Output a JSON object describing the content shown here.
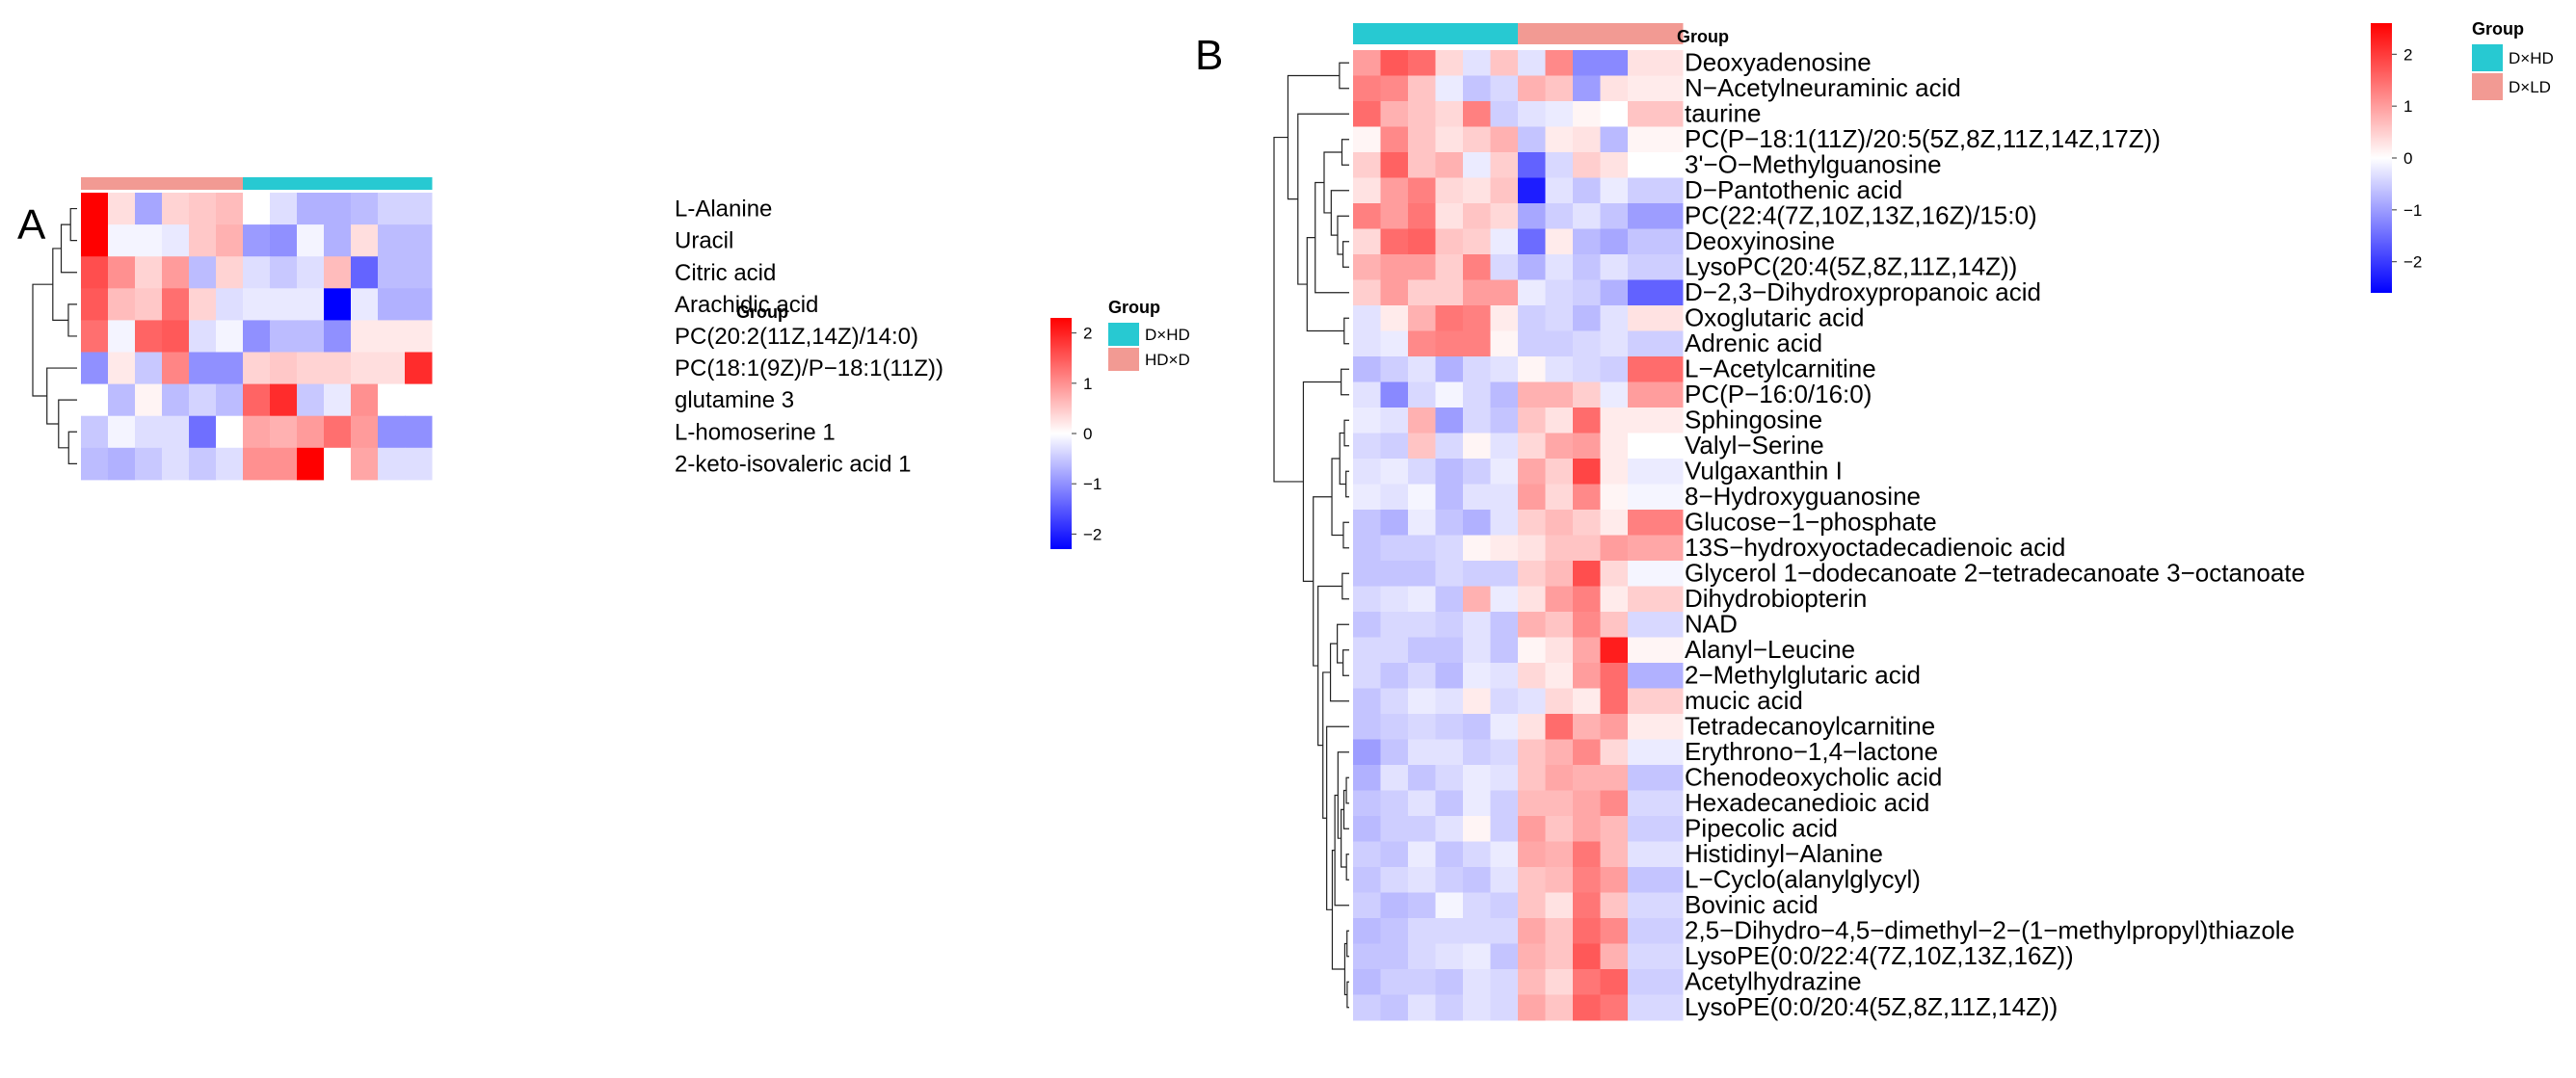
{
  "chart_data": [
    {
      "type": "heatmap",
      "panel_label": "A",
      "group_annotation_title": "Group",
      "groups": [
        "HD×D",
        "HD×D",
        "HD×D",
        "HD×D",
        "HD×D",
        "HD×D",
        "D×HD",
        "D×HD",
        "D×HD",
        "D×HD",
        "D×HD",
        "D×HD",
        "D×HD"
      ],
      "rows": [
        "L-Alanine",
        "Uracil",
        "Citric acid",
        "Arachidic acid",
        "PC(20:2(11Z,14Z)/14:0)",
        "PC(18:1(9Z)/P−18:1(11Z))",
        "glutamine 3",
        "L-homoserine 1",
        "2-keto-isovaleric acid 1"
      ],
      "values": [
        [
          2.3,
          0.3,
          -0.8,
          0.4,
          0.5,
          0.6,
          0.0,
          -0.3,
          -0.7,
          -0.7,
          -0.6,
          -0.4,
          -0.4
        ],
        [
          2.3,
          -0.1,
          -0.1,
          -0.2,
          0.5,
          0.7,
          -0.9,
          -1.0,
          -0.1,
          -0.7,
          0.3,
          -0.6,
          -0.6
        ],
        [
          1.6,
          1.0,
          0.4,
          0.9,
          -0.6,
          0.4,
          -0.3,
          -0.5,
          -0.3,
          0.6,
          -1.4,
          -0.6,
          -0.6
        ],
        [
          1.5,
          0.6,
          0.5,
          1.3,
          0.4,
          -0.3,
          -0.2,
          -0.2,
          -0.2,
          -2.3,
          -0.2,
          -0.7,
          -0.7
        ],
        [
          1.3,
          -0.1,
          1.4,
          1.5,
          -0.3,
          -0.1,
          -1.0,
          -0.6,
          -0.6,
          -1.0,
          0.2,
          0.2,
          0.2
        ],
        [
          -1.0,
          0.2,
          -0.5,
          1.1,
          -1.0,
          -1.0,
          0.4,
          0.5,
          0.4,
          0.4,
          0.3,
          0.3,
          1.9
        ],
        [
          0.0,
          -0.6,
          0.1,
          -0.6,
          -0.4,
          -0.6,
          1.4,
          1.9,
          -0.5,
          -0.2,
          1.0,
          0.0,
          0.0
        ],
        [
          -0.5,
          -0.1,
          -0.3,
          -0.3,
          -1.3,
          0.0,
          0.8,
          0.7,
          0.9,
          1.3,
          0.9,
          -1.0,
          -1.0
        ],
        [
          -0.6,
          -0.7,
          -0.5,
          -0.3,
          -0.5,
          -0.3,
          1.0,
          1.0,
          2.3,
          0.0,
          0.8,
          -0.3,
          -0.3
        ]
      ],
      "colorbar": {
        "min": -2.3,
        "max": 2.3,
        "ticks": [
          2,
          1,
          0,
          -1,
          -2
        ],
        "tick_labels": [
          "2",
          "1",
          "0",
          "−1",
          "−2"
        ]
      },
      "legend": {
        "title": "Group",
        "entries": [
          {
            "label": "D×HD",
            "color": "#27c9d2"
          },
          {
            "label": "HD×D",
            "color": "#f29a93"
          }
        ]
      }
    },
    {
      "type": "heatmap",
      "panel_label": "B",
      "group_annotation_title": "Group",
      "groups": [
        "D×HD",
        "D×HD",
        "D×HD",
        "D×HD",
        "D×HD",
        "D×HD",
        "D×LD",
        "D×LD",
        "D×LD",
        "D×LD",
        "D×LD",
        "D×LD"
      ],
      "rows": [
        "Deoxyadenosine",
        "N−Acetylneuraminic acid",
        "taurine",
        "PC(P−18:1(11Z)/20:5(5Z,8Z,11Z,14Z,17Z))",
        "3'−O−Methylguanosine",
        "D−Pantothenic acid",
        "PC(22:4(7Z,10Z,13Z,16Z)/15:0)",
        "Deoxyinosine",
        "LysoPC(20:4(5Z,8Z,11Z,14Z))",
        "D−2,3−Dihydroxypropanoic acid",
        "Oxoglutaric acid",
        "Adrenic acid",
        "L−Acetylcarnitine",
        "PC(P−16:0/16:0)",
        "Sphingosine",
        "Valyl−Serine",
        "Vulgaxanthin I",
        "8−Hydroxyguanosine",
        "Glucose−1−phosphate",
        "13S−hydroxyoctadecadienoic acid",
        "Glycerol 1−dodecanoate 2−tetradecanoate 3−octanoate",
        "Dihydrobiopterin",
        "NAD",
        "Alanyl−Leucine",
        "2−Methylglutaric acid",
        "mucic acid",
        "Tetradecanoylcarnitine",
        "Erythrono−1,4−lactone",
        "Chenodeoxycholic acid",
        "Hexadecanedioic acid",
        "Pipecolic acid",
        "Histidinyl−Alanine",
        "L−Cyclo(alanylglycyl)",
        "Bovinic acid",
        "2,5−Dihydro−4,5−dimethyl−2−(1−methylpropyl)thiazole",
        "LysoPE(0:0/22:4(7Z,10Z,13Z,16Z))",
        "Acetylhydrazine",
        "LysoPE(0:0/20:4(5Z,8Z,11Z,14Z))"
      ],
      "values": [
        [
          1.0,
          1.7,
          1.5,
          0.4,
          -0.3,
          0.6,
          -0.3,
          1.2,
          -1.2,
          -1.2,
          0.3,
          0.3
        ],
        [
          1.3,
          1.2,
          0.6,
          -0.2,
          -0.6,
          -0.4,
          0.8,
          0.6,
          -1.0,
          0.3,
          0.2,
          0.2
        ],
        [
          1.5,
          0.8,
          0.6,
          0.4,
          1.3,
          -0.5,
          -0.3,
          -0.2,
          0.1,
          0.0,
          0.6,
          0.6
        ],
        [
          0.1,
          1.2,
          0.6,
          0.3,
          0.5,
          0.8,
          -0.6,
          0.2,
          0.3,
          -0.7,
          0.1,
          0.1
        ],
        [
          0.5,
          1.6,
          0.6,
          0.8,
          -0.2,
          0.5,
          -1.6,
          -0.4,
          0.5,
          0.3,
          0.0,
          0.0
        ],
        [
          0.3,
          1.0,
          1.3,
          0.4,
          0.3,
          0.6,
          -2.3,
          -0.3,
          -0.6,
          -0.2,
          -0.5,
          -0.5
        ],
        [
          1.3,
          1.0,
          1.4,
          0.3,
          0.6,
          0.4,
          -0.9,
          -0.5,
          -0.3,
          -0.6,
          -1.0,
          -1.0
        ],
        [
          0.4,
          1.5,
          1.6,
          0.6,
          0.5,
          -0.2,
          -1.5,
          0.2,
          -0.7,
          -0.9,
          -0.6,
          -0.6
        ],
        [
          0.8,
          1.0,
          1.0,
          0.5,
          1.3,
          -0.4,
          -0.8,
          -0.3,
          -0.6,
          -0.3,
          -0.5,
          -0.5
        ],
        [
          0.5,
          1.0,
          0.5,
          0.5,
          1.0,
          1.0,
          -0.2,
          -0.4,
          -0.5,
          -0.8,
          -1.6,
          -1.6
        ],
        [
          -0.3,
          0.2,
          0.8,
          1.4,
          1.3,
          0.2,
          -0.5,
          -0.4,
          -0.7,
          -0.3,
          0.3,
          0.3
        ],
        [
          -0.3,
          -0.2,
          1.2,
          1.3,
          1.3,
          0.1,
          -0.5,
          -0.5,
          -0.4,
          -0.3,
          -0.5,
          -0.5
        ],
        [
          -0.7,
          -0.5,
          -0.3,
          -0.8,
          -0.4,
          -0.3,
          0.1,
          -0.3,
          -0.4,
          -0.5,
          1.5,
          1.5
        ],
        [
          -0.3,
          -1.2,
          -0.4,
          -0.1,
          -0.4,
          -0.7,
          0.8,
          0.8,
          0.5,
          -0.2,
          1.0,
          1.0
        ],
        [
          -0.2,
          -0.3,
          0.8,
          -1.0,
          -0.4,
          -0.6,
          0.6,
          0.3,
          1.5,
          0.2,
          0.2,
          0.2
        ],
        [
          -0.4,
          -0.5,
          0.6,
          -0.4,
          0.1,
          -0.3,
          0.4,
          0.9,
          1.0,
          0.2,
          0.0,
          0.0
        ],
        [
          -0.3,
          -0.2,
          -0.4,
          -0.7,
          -0.5,
          -0.2,
          0.9,
          0.5,
          1.9,
          0.2,
          -0.2,
          -0.2
        ],
        [
          -0.2,
          -0.3,
          -0.1,
          -0.7,
          -0.3,
          -0.3,
          1.0,
          0.4,
          1.2,
          0.1,
          -0.1,
          -0.1
        ],
        [
          -0.6,
          -0.8,
          -0.2,
          -0.6,
          -0.8,
          -0.3,
          0.5,
          0.7,
          0.5,
          0.2,
          1.3,
          1.3
        ],
        [
          -0.6,
          -0.5,
          -0.5,
          -0.4,
          0.1,
          0.2,
          0.3,
          0.6,
          0.6,
          1.0,
          0.9,
          0.9
        ],
        [
          -0.6,
          -0.6,
          -0.6,
          -0.4,
          -0.5,
          -0.5,
          0.5,
          0.7,
          1.8,
          0.4,
          -0.1,
          -0.1
        ],
        [
          -0.4,
          -0.3,
          -0.2,
          -0.6,
          0.8,
          -0.2,
          0.3,
          1.0,
          1.3,
          0.2,
          0.5,
          0.5
        ],
        [
          -0.6,
          -0.4,
          -0.4,
          -0.5,
          -0.3,
          -0.6,
          0.8,
          0.6,
          1.2,
          0.6,
          -0.4,
          -0.4
        ],
        [
          -0.4,
          -0.4,
          -0.6,
          -0.6,
          -0.3,
          -0.6,
          0.1,
          0.3,
          0.9,
          2.3,
          0.1,
          0.1
        ],
        [
          -0.4,
          -0.6,
          -0.4,
          -0.7,
          -0.2,
          -0.3,
          0.4,
          0.2,
          1.0,
          1.5,
          -0.8,
          -0.8
        ],
        [
          -0.6,
          -0.4,
          -0.2,
          -0.3,
          0.2,
          -0.4,
          -0.3,
          0.4,
          0.2,
          1.5,
          0.5,
          0.5
        ],
        [
          -0.6,
          -0.5,
          -0.4,
          -0.5,
          -0.6,
          -0.2,
          0.3,
          1.5,
          0.8,
          1.0,
          0.2,
          0.2
        ],
        [
          -1.0,
          -0.6,
          -0.3,
          -0.3,
          -0.5,
          -0.4,
          0.6,
          0.8,
          1.2,
          0.4,
          -0.2,
          -0.2
        ],
        [
          -0.8,
          -0.3,
          -0.6,
          -0.4,
          -0.2,
          -0.3,
          0.6,
          0.9,
          0.8,
          0.8,
          -0.6,
          -0.6
        ],
        [
          -0.6,
          -0.5,
          -0.3,
          -0.6,
          -0.2,
          -0.5,
          0.7,
          0.7,
          0.9,
          1.2,
          -0.4,
          -0.4
        ],
        [
          -0.7,
          -0.5,
          -0.5,
          -0.3,
          0.1,
          -0.5,
          1.0,
          0.6,
          0.9,
          0.7,
          -0.5,
          -0.5
        ],
        [
          -0.5,
          -0.6,
          -0.2,
          -0.6,
          -0.4,
          -0.2,
          0.9,
          0.8,
          1.4,
          0.7,
          -0.3,
          -0.3
        ],
        [
          -0.6,
          -0.4,
          -0.3,
          -0.5,
          -0.6,
          -0.3,
          0.6,
          0.7,
          1.3,
          1.0,
          -0.6,
          -0.6
        ],
        [
          -0.5,
          -0.7,
          -0.6,
          -0.1,
          -0.4,
          -0.5,
          0.6,
          0.3,
          1.4,
          0.6,
          -0.4,
          -0.4
        ],
        [
          -0.7,
          -0.6,
          -0.4,
          -0.4,
          -0.4,
          -0.4,
          0.9,
          0.6,
          1.5,
          1.2,
          -0.5,
          -0.5
        ],
        [
          -0.6,
          -0.6,
          -0.4,
          -0.3,
          -0.2,
          -0.6,
          0.8,
          0.6,
          1.7,
          0.8,
          -0.4,
          -0.4
        ],
        [
          -0.7,
          -0.5,
          -0.5,
          -0.6,
          -0.3,
          -0.4,
          0.7,
          0.4,
          1.4,
          1.6,
          -0.5,
          -0.5
        ],
        [
          -0.5,
          -0.6,
          -0.3,
          -0.5,
          -0.3,
          -0.4,
          0.9,
          0.6,
          1.6,
          1.4,
          -0.4,
          -0.4
        ]
      ],
      "colorbar": {
        "min": -2.6,
        "max": 2.6,
        "ticks": [
          2,
          1,
          0,
          -1,
          -2
        ],
        "tick_labels": [
          "2",
          "1",
          "0",
          "−1",
          "−2"
        ]
      },
      "legend": {
        "title": "Group",
        "entries": [
          {
            "label": "D×HD",
            "color": "#27c9d2"
          },
          {
            "label": "D×LD",
            "color": "#f29a93"
          }
        ]
      }
    }
  ]
}
